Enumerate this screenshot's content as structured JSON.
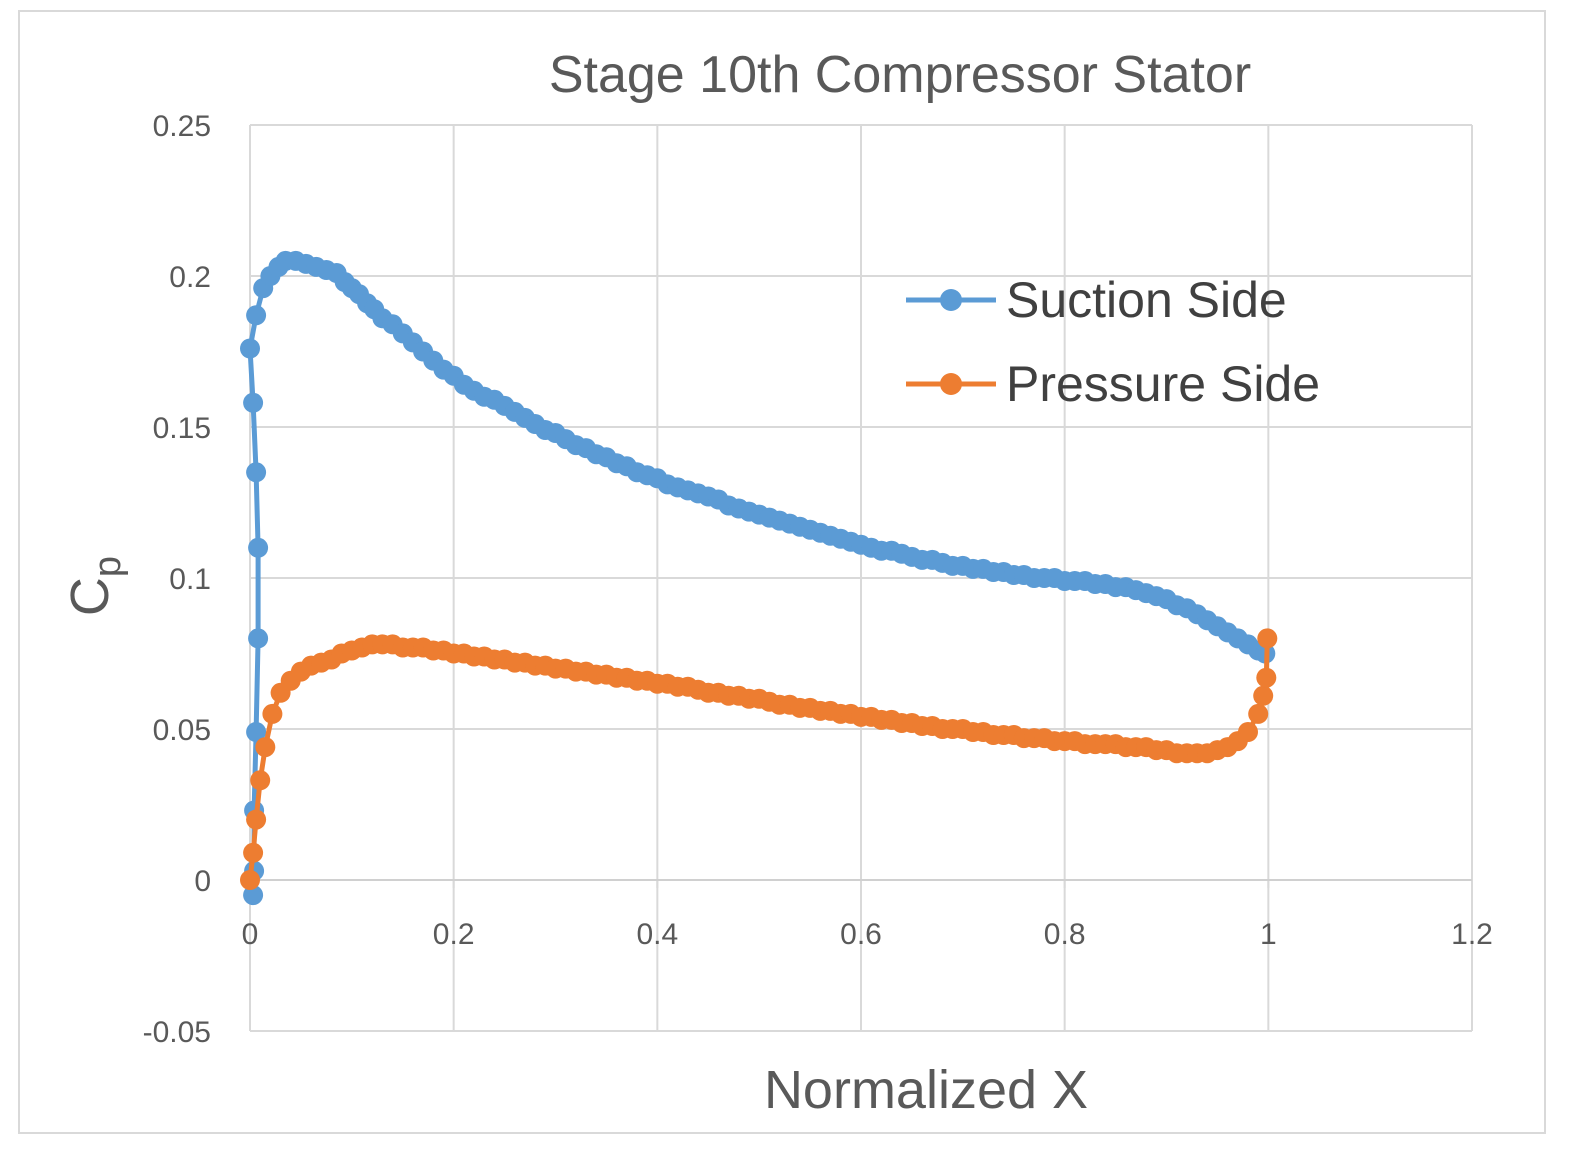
{
  "chart_data": {
    "type": "scatter",
    "title": "Stage 10th Compressor Stator",
    "xlabel": "Normalized X",
    "ylabel": "Cp",
    "ylabel_main": "C",
    "ylabel_sub": "p",
    "xlim": [
      0,
      1.2
    ],
    "ylim": [
      -0.05,
      0.25
    ],
    "xticks": [
      0,
      0.2,
      0.4,
      0.6,
      0.8,
      1,
      1.2
    ],
    "xtick_labels": [
      "0",
      "0.2",
      "0.4",
      "0.6",
      "0.8",
      "1",
      "1.2"
    ],
    "yticks": [
      -0.05,
      0,
      0.05,
      0.1,
      0.15,
      0.2,
      0.25
    ],
    "ytick_labels": [
      "-0.05",
      "0",
      "0.05",
      "0.1",
      "0.15",
      "0.2",
      "0.25"
    ],
    "grid": true,
    "legend_position": "top-right",
    "series": [
      {
        "name": "Suction Side",
        "color": "#5b9bd5",
        "points": [
          [
            0.003,
            -0.005
          ],
          [
            0.004,
            0.003
          ],
          [
            0.004,
            0.023
          ],
          [
            0.006,
            0.049
          ],
          [
            0.008,
            0.08
          ],
          [
            0.008,
            0.11
          ],
          [
            0.006,
            0.135
          ],
          [
            0.003,
            0.158
          ],
          [
            0.0,
            0.176
          ],
          [
            0.006,
            0.187
          ],
          [
            0.013,
            0.196
          ],
          [
            0.02,
            0.2
          ],
          [
            0.028,
            0.203
          ],
          [
            0.035,
            0.205
          ],
          [
            0.045,
            0.205
          ],
          [
            0.055,
            0.204
          ],
          [
            0.065,
            0.203
          ],
          [
            0.075,
            0.202
          ],
          [
            0.085,
            0.201
          ],
          [
            0.093,
            0.198
          ],
          [
            0.1,
            0.196
          ],
          [
            0.107,
            0.194
          ],
          [
            0.115,
            0.191
          ],
          [
            0.122,
            0.189
          ],
          [
            0.13,
            0.186
          ],
          [
            0.14,
            0.184
          ],
          [
            0.15,
            0.181
          ],
          [
            0.16,
            0.178
          ],
          [
            0.17,
            0.175
          ],
          [
            0.18,
            0.172
          ],
          [
            0.19,
            0.169
          ],
          [
            0.2,
            0.167
          ],
          [
            0.21,
            0.164
          ],
          [
            0.22,
            0.162
          ],
          [
            0.23,
            0.16
          ],
          [
            0.24,
            0.159
          ],
          [
            0.25,
            0.157
          ],
          [
            0.26,
            0.155
          ],
          [
            0.27,
            0.153
          ],
          [
            0.28,
            0.151
          ],
          [
            0.29,
            0.149
          ],
          [
            0.3,
            0.148
          ],
          [
            0.31,
            0.146
          ],
          [
            0.32,
            0.144
          ],
          [
            0.33,
            0.143
          ],
          [
            0.34,
            0.141
          ],
          [
            0.35,
            0.14
          ],
          [
            0.36,
            0.138
          ],
          [
            0.37,
            0.137
          ],
          [
            0.38,
            0.135
          ],
          [
            0.39,
            0.134
          ],
          [
            0.4,
            0.133
          ],
          [
            0.41,
            0.131
          ],
          [
            0.42,
            0.13
          ],
          [
            0.43,
            0.129
          ],
          [
            0.44,
            0.128
          ],
          [
            0.45,
            0.127
          ],
          [
            0.46,
            0.126
          ],
          [
            0.47,
            0.124
          ],
          [
            0.48,
            0.123
          ],
          [
            0.49,
            0.122
          ],
          [
            0.5,
            0.121
          ],
          [
            0.51,
            0.12
          ],
          [
            0.52,
            0.119
          ],
          [
            0.53,
            0.118
          ],
          [
            0.54,
            0.117
          ],
          [
            0.55,
            0.116
          ],
          [
            0.56,
            0.115
          ],
          [
            0.57,
            0.114
          ],
          [
            0.58,
            0.113
          ],
          [
            0.59,
            0.112
          ],
          [
            0.6,
            0.111
          ],
          [
            0.61,
            0.11
          ],
          [
            0.62,
            0.109
          ],
          [
            0.63,
            0.109
          ],
          [
            0.64,
            0.108
          ],
          [
            0.65,
            0.107
          ],
          [
            0.66,
            0.106
          ],
          [
            0.67,
            0.106
          ],
          [
            0.68,
            0.105
          ],
          [
            0.69,
            0.104
          ],
          [
            0.7,
            0.104
          ],
          [
            0.71,
            0.103
          ],
          [
            0.72,
            0.103
          ],
          [
            0.73,
            0.102
          ],
          [
            0.74,
            0.102
          ],
          [
            0.75,
            0.101
          ],
          [
            0.76,
            0.101
          ],
          [
            0.77,
            0.1
          ],
          [
            0.78,
            0.1
          ],
          [
            0.79,
            0.1
          ],
          [
            0.8,
            0.099
          ],
          [
            0.81,
            0.099
          ],
          [
            0.82,
            0.099
          ],
          [
            0.83,
            0.098
          ],
          [
            0.84,
            0.098
          ],
          [
            0.85,
            0.097
          ],
          [
            0.86,
            0.097
          ],
          [
            0.87,
            0.096
          ],
          [
            0.88,
            0.095
          ],
          [
            0.89,
            0.094
          ],
          [
            0.9,
            0.093
          ],
          [
            0.91,
            0.091
          ],
          [
            0.92,
            0.09
          ],
          [
            0.93,
            0.088
          ],
          [
            0.94,
            0.086
          ],
          [
            0.95,
            0.084
          ],
          [
            0.96,
            0.082
          ],
          [
            0.97,
            0.08
          ],
          [
            0.98,
            0.078
          ],
          [
            0.99,
            0.076
          ],
          [
            0.997,
            0.075
          ]
        ]
      },
      {
        "name": "Pressure Side",
        "color": "#ed7d31",
        "points": [
          [
            0.0,
            0.0
          ],
          [
            0.003,
            0.009
          ],
          [
            0.006,
            0.02
          ],
          [
            0.01,
            0.033
          ],
          [
            0.015,
            0.044
          ],
          [
            0.022,
            0.055
          ],
          [
            0.03,
            0.062
          ],
          [
            0.04,
            0.066
          ],
          [
            0.05,
            0.069
          ],
          [
            0.06,
            0.071
          ],
          [
            0.07,
            0.072
          ],
          [
            0.08,
            0.073
          ],
          [
            0.09,
            0.075
          ],
          [
            0.1,
            0.076
          ],
          [
            0.11,
            0.077
          ],
          [
            0.12,
            0.078
          ],
          [
            0.13,
            0.078
          ],
          [
            0.14,
            0.078
          ],
          [
            0.15,
            0.077
          ],
          [
            0.16,
            0.077
          ],
          [
            0.17,
            0.077
          ],
          [
            0.18,
            0.076
          ],
          [
            0.19,
            0.076
          ],
          [
            0.2,
            0.075
          ],
          [
            0.21,
            0.075
          ],
          [
            0.22,
            0.074
          ],
          [
            0.23,
            0.074
          ],
          [
            0.24,
            0.073
          ],
          [
            0.25,
            0.073
          ],
          [
            0.26,
            0.072
          ],
          [
            0.27,
            0.072
          ],
          [
            0.28,
            0.071
          ],
          [
            0.29,
            0.071
          ],
          [
            0.3,
            0.07
          ],
          [
            0.31,
            0.07
          ],
          [
            0.32,
            0.069
          ],
          [
            0.33,
            0.069
          ],
          [
            0.34,
            0.068
          ],
          [
            0.35,
            0.068
          ],
          [
            0.36,
            0.067
          ],
          [
            0.37,
            0.067
          ],
          [
            0.38,
            0.066
          ],
          [
            0.39,
            0.066
          ],
          [
            0.4,
            0.065
          ],
          [
            0.41,
            0.065
          ],
          [
            0.42,
            0.064
          ],
          [
            0.43,
            0.064
          ],
          [
            0.44,
            0.063
          ],
          [
            0.45,
            0.062
          ],
          [
            0.46,
            0.062
          ],
          [
            0.47,
            0.061
          ],
          [
            0.48,
            0.061
          ],
          [
            0.49,
            0.06
          ],
          [
            0.5,
            0.06
          ],
          [
            0.51,
            0.059
          ],
          [
            0.52,
            0.058
          ],
          [
            0.53,
            0.058
          ],
          [
            0.54,
            0.057
          ],
          [
            0.55,
            0.057
          ],
          [
            0.56,
            0.056
          ],
          [
            0.57,
            0.056
          ],
          [
            0.58,
            0.055
          ],
          [
            0.59,
            0.055
          ],
          [
            0.6,
            0.054
          ],
          [
            0.61,
            0.054
          ],
          [
            0.62,
            0.053
          ],
          [
            0.63,
            0.053
          ],
          [
            0.64,
            0.052
          ],
          [
            0.65,
            0.052
          ],
          [
            0.66,
            0.051
          ],
          [
            0.67,
            0.051
          ],
          [
            0.68,
            0.05
          ],
          [
            0.69,
            0.05
          ],
          [
            0.7,
            0.05
          ],
          [
            0.71,
            0.049
          ],
          [
            0.72,
            0.049
          ],
          [
            0.73,
            0.048
          ],
          [
            0.74,
            0.048
          ],
          [
            0.75,
            0.048
          ],
          [
            0.76,
            0.047
          ],
          [
            0.77,
            0.047
          ],
          [
            0.78,
            0.047
          ],
          [
            0.79,
            0.046
          ],
          [
            0.8,
            0.046
          ],
          [
            0.81,
            0.046
          ],
          [
            0.82,
            0.045
          ],
          [
            0.83,
            0.045
          ],
          [
            0.84,
            0.045
          ],
          [
            0.85,
            0.045
          ],
          [
            0.86,
            0.044
          ],
          [
            0.87,
            0.044
          ],
          [
            0.88,
            0.044
          ],
          [
            0.89,
            0.043
          ],
          [
            0.9,
            0.043
          ],
          [
            0.91,
            0.042
          ],
          [
            0.92,
            0.042
          ],
          [
            0.93,
            0.042
          ],
          [
            0.94,
            0.042
          ],
          [
            0.95,
            0.043
          ],
          [
            0.96,
            0.044
          ],
          [
            0.97,
            0.046
          ],
          [
            0.98,
            0.049
          ],
          [
            0.99,
            0.055
          ],
          [
            0.995,
            0.061
          ],
          [
            0.998,
            0.067
          ],
          [
            0.999,
            0.08
          ]
        ]
      }
    ]
  }
}
